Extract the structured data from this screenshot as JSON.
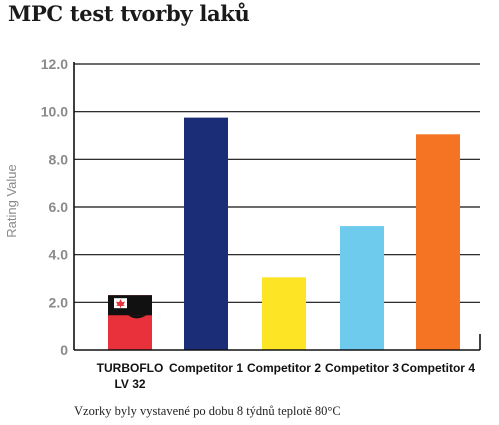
{
  "title": "MPC test tvorby laků",
  "note": "Vzorky byly vystavené po dobu 8 týdnů teplotě 80°C",
  "colors": {
    "turboflo_red": "#e8313a",
    "turboflo_black": "#111111",
    "competitor_1": "#1c2d78",
    "competitor_2": "#fde425",
    "competitor_3": "#6fcbed",
    "competitor_4": "#f47424",
    "axis": "#111111",
    "grid": "#111111",
    "label": "#8a8a8a"
  },
  "chart_data": {
    "type": "bar",
    "title": "MPC test tvorby laků",
    "xlabel": "",
    "ylabel": "Rating Value",
    "ylim": [
      0,
      12
    ],
    "yticks": [
      0,
      2,
      4,
      6,
      8,
      10,
      12
    ],
    "ytick_labels": [
      "0",
      "2.0",
      "4.0",
      "6.0",
      "8.0",
      "10.0",
      "12.0"
    ],
    "grid": true,
    "categories": [
      [
        "TURBOFLO",
        "LV 32"
      ],
      [
        "Competitor 1"
      ],
      [
        "Competitor 2"
      ],
      [
        "Competitor 3"
      ],
      [
        "Competitor 4"
      ]
    ],
    "values": [
      2.3,
      9.75,
      3.05,
      5.2,
      9.05
    ]
  }
}
